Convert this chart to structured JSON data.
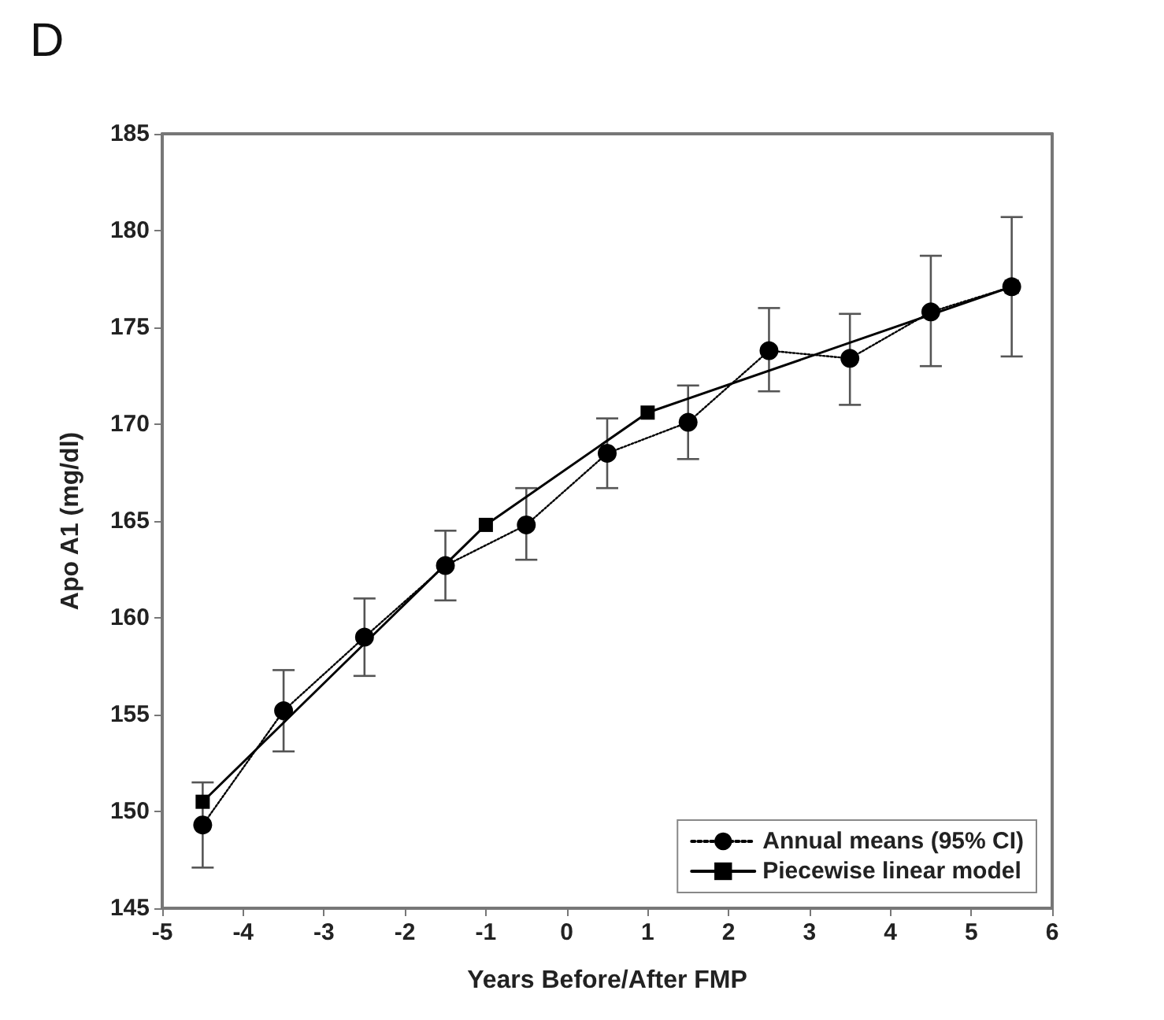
{
  "chart_data": {
    "type": "line",
    "title": "D",
    "xlabel": "Years Before/After FMP",
    "ylabel": "Apo A1 (mg/dl)",
    "xlim": [
      -5,
      6
    ],
    "xticks": [
      -5,
      -4,
      -3,
      -2,
      -1,
      0,
      1,
      2,
      3,
      4,
      5,
      6
    ],
    "ylim": [
      145,
      185
    ],
    "yticks": [
      145,
      150,
      155,
      160,
      165,
      170,
      175,
      180,
      185
    ],
    "grid": false,
    "legend": "bottom right",
    "series": [
      {
        "name": "Annual means (95% CI)",
        "color": "#000000",
        "marker": "circle",
        "line_style": "dotted",
        "x": [
          -4.5,
          -3.5,
          -2.5,
          -1.5,
          -0.5,
          0.5,
          1.5,
          2.5,
          3.5,
          4.5,
          5.5
        ],
        "values": [
          149.3,
          155.2,
          159.0,
          162.7,
          164.8,
          168.5,
          170.1,
          173.8,
          173.4,
          175.8,
          177.1
        ],
        "errors": [
          [
            147.1,
            151.5
          ],
          [
            153.1,
            157.3
          ],
          [
            157.0,
            161.0
          ],
          [
            160.9,
            164.5
          ],
          [
            163.0,
            166.7
          ],
          [
            166.7,
            170.3
          ],
          [
            168.2,
            172.0
          ],
          [
            171.7,
            176.0
          ],
          [
            171.0,
            175.7
          ],
          [
            173.0,
            178.7
          ],
          [
            173.5,
            180.7
          ]
        ]
      },
      {
        "name": "Piecewise linear model",
        "color": "#000000",
        "marker": "square",
        "line_style": "solid",
        "x": [
          -4.5,
          -1,
          1,
          5.5
        ],
        "values": [
          150.5,
          164.8,
          170.6,
          177.1
        ]
      }
    ]
  }
}
